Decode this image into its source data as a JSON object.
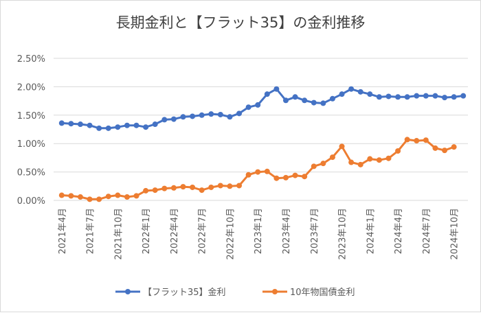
{
  "chart_data": {
    "type": "line",
    "title": "長期金利と【フラット35】の金利推移",
    "categories": [
      "2021年4月",
      null,
      null,
      "2021年7月",
      null,
      null,
      "2021年10月",
      null,
      null,
      "2022年1月",
      null,
      null,
      "2022年4月",
      null,
      null,
      "2022年7月",
      null,
      null,
      "2022年10月",
      null,
      null,
      "2023年1月",
      null,
      null,
      "2023年4月",
      null,
      null,
      "2023年7月",
      null,
      null,
      "2023年10月",
      null,
      null,
      "2024年1月",
      null,
      null,
      "2024年4月",
      null,
      null,
      "2024年7月",
      null,
      null,
      "2024年10月",
      null
    ],
    "series": [
      {
        "name": "【フラット35】金利",
        "color": "#4472c4",
        "values": [
          1.36,
          1.35,
          1.34,
          1.32,
          1.27,
          1.27,
          1.29,
          1.32,
          1.32,
          1.29,
          1.34,
          1.42,
          1.43,
          1.47,
          1.48,
          1.5,
          1.52,
          1.51,
          1.47,
          1.53,
          1.64,
          1.68,
          1.87,
          1.96,
          1.76,
          1.82,
          1.76,
          1.72,
          1.71,
          1.79,
          1.87,
          1.96,
          1.91,
          1.87,
          1.82,
          1.83,
          1.82,
          1.82,
          1.84,
          1.84,
          1.84,
          1.81,
          1.82,
          1.84
        ]
      },
      {
        "name": "10年物国債金利",
        "color": "#ed7d31",
        "values": [
          0.09,
          0.08,
          0.06,
          0.02,
          0.02,
          0.07,
          0.09,
          0.06,
          0.08,
          0.17,
          0.18,
          0.21,
          0.22,
          0.24,
          0.23,
          0.18,
          0.23,
          0.26,
          0.25,
          0.26,
          0.45,
          0.5,
          0.51,
          0.39,
          0.4,
          0.44,
          0.42,
          0.6,
          0.65,
          0.76,
          0.95,
          0.67,
          0.63,
          0.73,
          0.71,
          0.74,
          0.87,
          1.07,
          1.05,
          1.06,
          0.92,
          0.88,
          0.94,
          null
        ]
      }
    ],
    "ylim": [
      0,
      2.5
    ],
    "yticks": [
      {
        "value": 0,
        "label": "0.00%"
      },
      {
        "value": 0.5,
        "label": "0.50%"
      },
      {
        "value": 1.0,
        "label": "1.00%"
      },
      {
        "value": 1.5,
        "label": "1.50%"
      },
      {
        "value": 2.0,
        "label": "2.00%"
      },
      {
        "value": 2.5,
        "label": "2.50%"
      }
    ],
    "grid": true
  }
}
